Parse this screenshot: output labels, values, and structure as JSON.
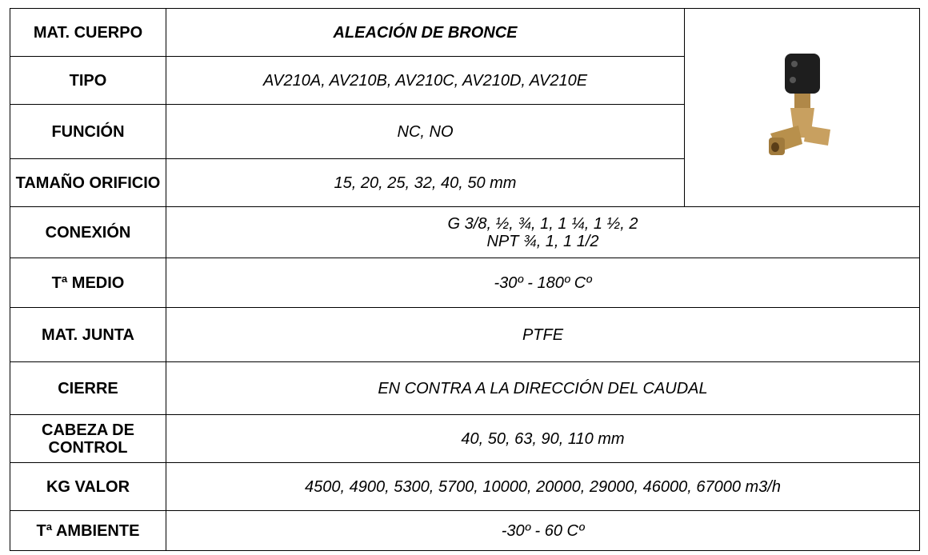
{
  "table": {
    "rows": [
      {
        "label": "MAT. CUERPO",
        "value": [
          "ALEACIÓN DE BRONCE"
        ]
      },
      {
        "label": "TIPO",
        "value": [
          "AV210A, AV210B, AV210C, AV210D, AV210E"
        ]
      },
      {
        "label": "FUNCIÓN",
        "value": [
          "NC, NO"
        ]
      },
      {
        "label": "TAMAÑO ORIFICIO",
        "value": [
          "15, 20, 25, 32, 40, 50 mm"
        ]
      },
      {
        "label": "CONEXIÓN",
        "value": [
          "G 3/8, ½, ¾, 1, 1 ¼, 1 ½, 2",
          "NPT ¾, 1, 1 1/2"
        ]
      },
      {
        "label": "Tª MEDIO",
        "value": [
          "-30º - 180º Cº"
        ]
      },
      {
        "label": "MAT. JUNTA",
        "value": [
          "PTFE"
        ]
      },
      {
        "label": "CIERRE",
        "value": [
          "EN CONTRA A LA DIRECCIÓN DEL CAUDAL"
        ]
      },
      {
        "label": "CABEZA DE CONTROL",
        "value": [
          "40, 50, 63, 90, 110 mm"
        ]
      },
      {
        "label": "KG VALOR",
        "value": [
          "4500, 4900, 5300, 5700, 10000, 20000, 29000, 46000, 67000 m3/h"
        ]
      },
      {
        "label": "Tª AMBIENTE",
        "value": [
          "-30º - 60 Cº"
        ]
      }
    ]
  }
}
